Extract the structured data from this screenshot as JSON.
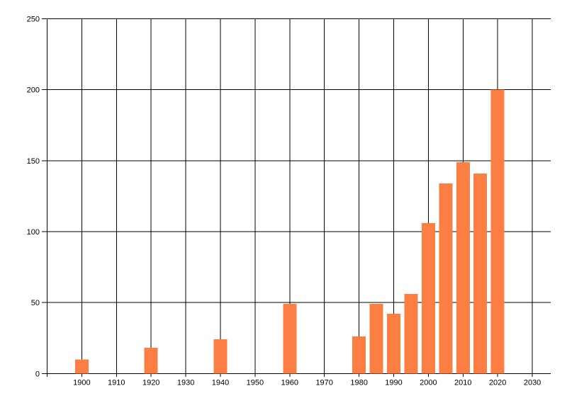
{
  "chart_data": {
    "type": "bar",
    "title": "",
    "xlabel": "",
    "ylabel": "",
    "x": [
      1900,
      1920,
      1940,
      1960,
      1980,
      1985,
      1990,
      1995,
      2000,
      2005,
      2010,
      2015,
      2020
    ],
    "values": [
      10,
      18,
      24,
      49,
      26,
      49,
      42,
      56,
      106,
      134,
      149,
      141,
      200
    ],
    "x_tick_years": [
      1900,
      1910,
      1920,
      1930,
      1940,
      1950,
      1960,
      1970,
      1980,
      1990,
      2000,
      2010,
      2020,
      2030
    ],
    "x_tick_labels": [
      "1900",
      "1910",
      "1920",
      "1930",
      "1940",
      "1950",
      "1960",
      "1970",
      "1980",
      "1990",
      "2000",
      "2010",
      "2020",
      "2030"
    ],
    "y_ticks": [
      0,
      50,
      100,
      150,
      200,
      250
    ],
    "y_tick_labels": [
      "0",
      "50",
      "100",
      "150",
      "200",
      "250"
    ],
    "xlim": [
      1890,
      2035.3
    ],
    "ylim": [
      0,
      250
    ],
    "grid": "on",
    "gridline_step_x_years": 10,
    "legend": "none",
    "colors": {
      "bar": "#fc7e42",
      "grid": "#000000",
      "text": "#000000",
      "background": "#ffffff"
    }
  }
}
